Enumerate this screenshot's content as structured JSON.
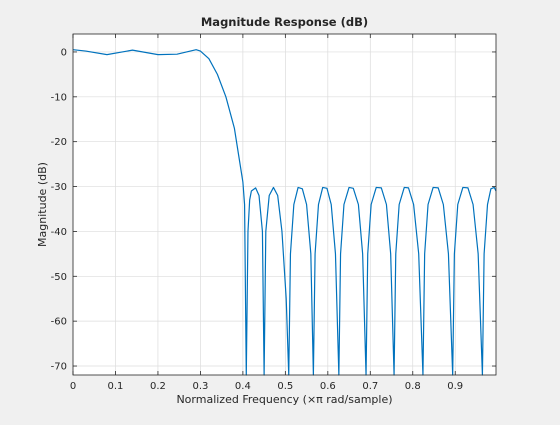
{
  "chart_data": {
    "type": "line",
    "title": "Magnitude Response (dB)",
    "xlabel": "Normalized Frequency (×π rad/sample)",
    "ylabel": "Magnitude (dB)",
    "xlim": [
      0,
      0.996
    ],
    "ylim": [
      -72,
      4
    ],
    "x_ticks": [
      0,
      0.1,
      0.2,
      0.3,
      0.4,
      0.5,
      0.6,
      0.7,
      0.8,
      0.9
    ],
    "x_tick_labels": [
      "0",
      "0.1",
      "0.2",
      "0.3",
      "0.4",
      "0.5",
      "0.6",
      "0.7",
      "0.8",
      "0.9"
    ],
    "y_ticks": [
      0,
      -10,
      -20,
      -30,
      -40,
      -50,
      -60,
      -70
    ],
    "y_tick_labels": [
      "0",
      "-10",
      "-20",
      "-30",
      "-40",
      "-50",
      "-60",
      "-70"
    ],
    "grid": true,
    "line_color": "#0072bd",
    "series": [
      {
        "x": [
          0,
          0.03,
          0.08,
          0.14,
          0.2,
          0.245,
          0.29,
          0.3,
          0.32,
          0.34,
          0.36,
          0.38,
          0.39,
          0.4,
          0.404,
          0.408,
          0.412,
          0.416,
          0.42,
          0.43,
          0.438,
          0.446,
          0.45,
          0.454,
          0.462,
          0.472,
          0.482,
          0.492,
          0.502,
          0.508,
          0.512,
          0.52,
          0.53,
          0.54,
          0.55,
          0.56,
          0.566,
          0.57,
          0.578,
          0.588,
          0.598,
          0.608,
          0.618,
          0.626,
          0.63,
          0.638,
          0.65,
          0.66,
          0.672,
          0.682,
          0.69,
          0.694,
          0.702,
          0.714,
          0.726,
          0.738,
          0.748,
          0.756,
          0.76,
          0.768,
          0.78,
          0.79,
          0.802,
          0.814,
          0.824,
          0.828,
          0.836,
          0.848,
          0.86,
          0.872,
          0.884,
          0.894,
          0.898,
          0.906,
          0.918,
          0.93,
          0.942,
          0.954,
          0.964,
          0.968,
          0.976,
          0.984,
          0.992,
          0.996
        ],
        "y": [
          0.5,
          0.2,
          -0.6,
          0.4,
          -0.6,
          -0.5,
          0.5,
          0.2,
          -1.5,
          -5,
          -10,
          -17,
          -23,
          -29,
          -34,
          -72,
          -40,
          -33,
          -31,
          -30.3,
          -32,
          -40,
          -72,
          -40,
          -32,
          -30.2,
          -32,
          -40,
          -55,
          -72,
          -45,
          -34,
          -30.2,
          -30.5,
          -34,
          -45,
          -72,
          -45,
          -34,
          -30.2,
          -30.4,
          -34,
          -45,
          -72,
          -45,
          -34,
          -30.2,
          -30.4,
          -34,
          -45,
          -72,
          -45,
          -34,
          -30.2,
          -30.3,
          -34,
          -45,
          -72,
          -45,
          -34,
          -30.2,
          -30.3,
          -34,
          -45,
          -72,
          -45,
          -34,
          -30.2,
          -30.3,
          -34,
          -45,
          -72,
          -45,
          -34,
          -30.2,
          -30.3,
          -34,
          -45,
          -72,
          -45,
          -34,
          -30.5,
          -30.2,
          -31
        ]
      }
    ]
  }
}
